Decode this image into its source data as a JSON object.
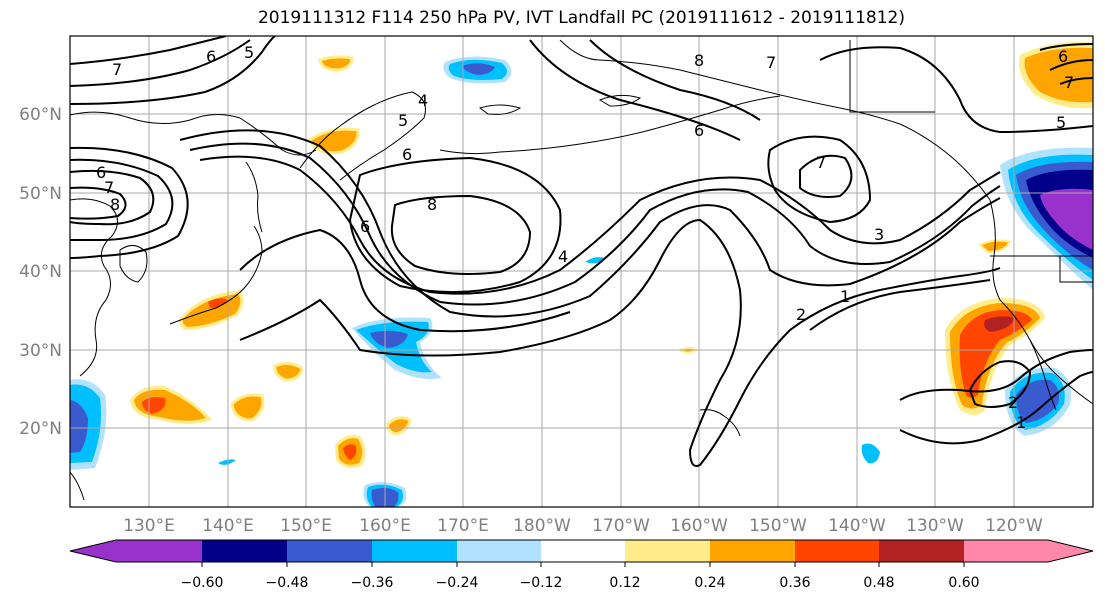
{
  "title": "2019111312 F114 250 hPa PV, IVT Landfall PC (2019111612 - 2019111812)",
  "lat_labels": [
    "60°N",
    "50°N",
    "40°N",
    "30°N",
    "20°N"
  ],
  "lon_labels": [
    "130°E",
    "140°E",
    "150°E",
    "160°E",
    "170°E",
    "180°W",
    "170°W",
    "160°W",
    "150°W",
    "140°W",
    "130°W",
    "120°W"
  ],
  "contour_labels": [
    "7",
    "6",
    "5",
    "6",
    "7",
    "8",
    "8",
    "6",
    "4",
    "5",
    "6",
    "7",
    "4",
    "2",
    "1",
    "3",
    "6",
    "7",
    "2",
    "1",
    "8",
    "5",
    "6",
    "7"
  ],
  "colorbar": {
    "ticks": [
      "−0.60",
      "−0.48",
      "−0.36",
      "−0.24",
      "−0.12",
      "0.12",
      "0.24",
      "0.36",
      "0.48",
      "0.60"
    ],
    "colors": [
      "#9932cc",
      "#00008b",
      "#3a5bd0",
      "#00bfff",
      "#b0e2ff",
      "#ffffff",
      "#ffec8b",
      "#ffa500",
      "#ff4500",
      "#b22222",
      "#ff88aa"
    ]
  }
}
